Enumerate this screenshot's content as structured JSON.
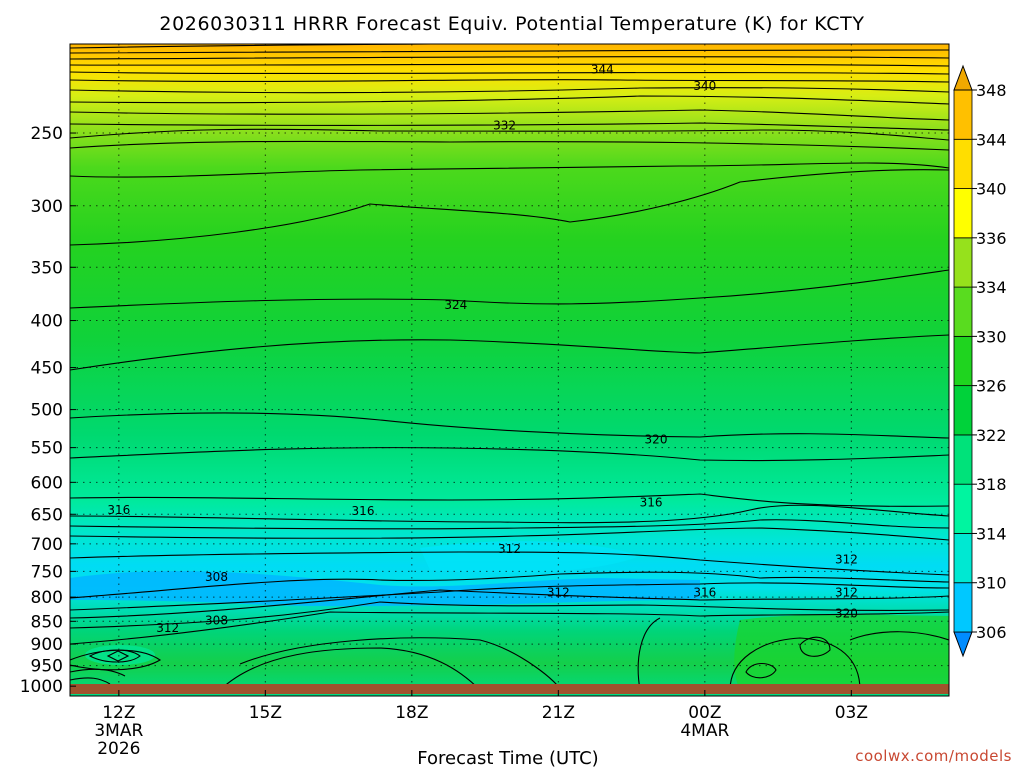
{
  "chart_data": {
    "type": "heatmap",
    "title": "2026030311 HRRR Forecast Equiv. Potential Temperature (K) for KCTY",
    "xlabel": "Forecast Time (UTC)",
    "ylabel": "",
    "credit": "coolwx.com/models",
    "x_ticks": [
      {
        "hour": 0,
        "lines": [
          "12Z",
          "3MAR",
          "2026"
        ]
      },
      {
        "hour": 3,
        "lines": [
          "15Z"
        ]
      },
      {
        "hour": 6,
        "lines": [
          "18Z"
        ]
      },
      {
        "hour": 9,
        "lines": [
          "21Z"
        ]
      },
      {
        "hour": 12,
        "lines": [
          "00Z",
          "4MAR"
        ]
      },
      {
        "hour": 15,
        "lines": [
          "03Z"
        ]
      }
    ],
    "xlim": [
      -1,
      17
    ],
    "y_ticks": [
      250,
      300,
      350,
      400,
      450,
      500,
      550,
      600,
      650,
      700,
      750,
      800,
      850,
      900,
      950,
      1000
    ],
    "ylim": [
      1025,
      200
    ],
    "y_scale": "log",
    "colorbar": {
      "levels": [
        306,
        310,
        314,
        318,
        322,
        326,
        330,
        334,
        336,
        340,
        344,
        348
      ],
      "colors": [
        "#008cff",
        "#00c8ff",
        "#00e8d2",
        "#00f5a0",
        "#00e27a",
        "#00d23a",
        "#1fd41f",
        "#59dc1f",
        "#96e11c",
        "#ffff00",
        "#ffde00",
        "#ffc000",
        "#f0a800"
      ]
    },
    "contour_labels": [
      {
        "value": "344",
        "x": 9.9,
        "y": 213
      },
      {
        "value": "340",
        "x": 12.0,
        "y": 222
      },
      {
        "value": "332",
        "x": 7.9,
        "y": 245
      },
      {
        "value": "324",
        "x": 6.9,
        "y": 384
      },
      {
        "value": "320",
        "x": 11.0,
        "y": 538
      },
      {
        "value": "316",
        "x": 0.0,
        "y": 642
      },
      {
        "value": "316",
        "x": 5.0,
        "y": 644
      },
      {
        "value": "316",
        "x": 10.9,
        "y": 630
      },
      {
        "value": "312",
        "x": 8.0,
        "y": 708
      },
      {
        "value": "312",
        "x": 14.9,
        "y": 727
      },
      {
        "value": "308",
        "x": 2.0,
        "y": 760
      },
      {
        "value": "312",
        "x": 9.0,
        "y": 790
      },
      {
        "value": "316",
        "x": 12.0,
        "y": 790
      },
      {
        "value": "312",
        "x": 14.9,
        "y": 790
      },
      {
        "value": "320",
        "x": 14.9,
        "y": 832
      },
      {
        "value": "308",
        "x": 2.0,
        "y": 847
      },
      {
        "value": "312",
        "x": 1.0,
        "y": 863
      }
    ]
  }
}
